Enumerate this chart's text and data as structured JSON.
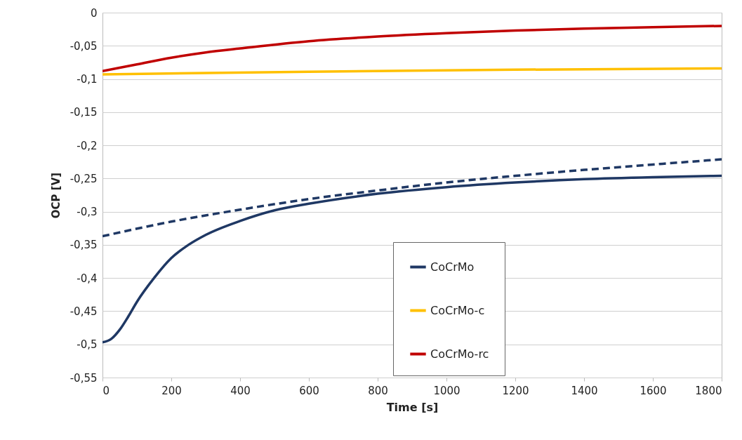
{
  "chart_data": {
    "type": "line",
    "xlabel": "Time [s]",
    "ylabel": "OCP [V]",
    "xlim": [
      0,
      1800
    ],
    "xticks": [
      0,
      200,
      400,
      600,
      800,
      1000,
      1200,
      1400,
      1600,
      1800
    ],
    "ylim": [
      -0.55,
      0
    ],
    "yticks": [
      0,
      {
        "value": -0.05,
        "label": "-0,05"
      },
      {
        "value": -0.1,
        "label": "-0,1"
      },
      {
        "value": -0.15,
        "label": "-0,15"
      },
      {
        "value": -0.2,
        "label": "-0,2"
      },
      {
        "value": -0.25,
        "label": "-0,25"
      },
      {
        "value": -0.3,
        "label": "-0,3"
      },
      {
        "value": -0.35,
        "label": "-0,35"
      },
      {
        "value": -0.4,
        "label": "-0,4"
      },
      {
        "value": -0.45,
        "label": "-0,45"
      },
      {
        "value": -0.5,
        "label": "-0,5"
      },
      {
        "value": -0.55,
        "label": "-0,55"
      }
    ],
    "grid": "y",
    "legend": "bottom",
    "line_style": "solid",
    "series": [
      {
        "name": "CoCrMo",
        "color": "#1f3864",
        "x": [
          0,
          25,
          50,
          75,
          100,
          150,
          200,
          250,
          300,
          400,
          500,
          600,
          800,
          1000,
          1200,
          1400,
          1600,
          1800
        ],
        "values": [
          -0.497,
          -0.492,
          -0.478,
          -0.458,
          -0.436,
          -0.4,
          -0.37,
          -0.35,
          -0.335,
          -0.314,
          -0.298,
          -0.288,
          -0.273,
          -0.263,
          -0.256,
          -0.251,
          -0.248,
          -0.246
        ]
      },
      {
        "name": "CoCrMo-c",
        "color": "#ffc000",
        "x": [
          0,
          600,
          1200,
          1800
        ],
        "values": [
          -0.093,
          -0.089,
          -0.086,
          -0.084
        ]
      },
      {
        "name": "CoCrMo-rc",
        "color": "#c00000",
        "x": [
          0,
          100,
          200,
          300,
          400,
          600,
          800,
          1000,
          1200,
          1400,
          1600,
          1800
        ],
        "values": [
          -0.088,
          -0.078,
          -0.068,
          -0.06,
          -0.054,
          -0.043,
          -0.036,
          -0.031,
          -0.027,
          -0.024,
          -0.022,
          -0.02
        ]
      },
      {
        "type": "line",
        "line_style": "dashed",
        "color": "#1f3864",
        "x": [
          0,
          200,
          400,
          600,
          800,
          1000,
          1200,
          1400,
          1600,
          1800
        ],
        "values": [
          -0.337,
          -0.315,
          -0.297,
          -0.281,
          -0.268,
          -0.256,
          -0.246,
          -0.237,
          -0.229,
          -0.221
        ]
      }
    ]
  }
}
